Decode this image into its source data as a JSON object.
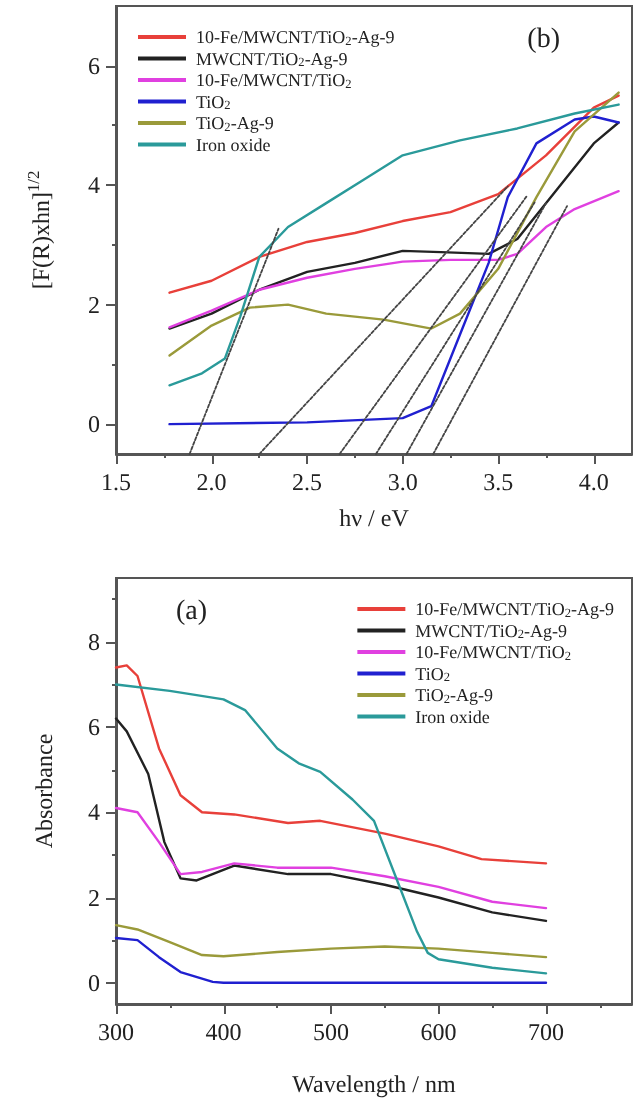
{
  "chart_data": [
    {
      "type": "line",
      "xlabel": "hν / eV",
      "ylabel": "[F(R)xhn]$^{1/2}$",
      "annotations": [
        "(b)"
      ],
      "xlim": [
        1.5,
        4.2
      ],
      "xticks": [
        1.5,
        {
          "value": 2,
          "label": "2.0"
        },
        2.5,
        {
          "value": 3,
          "label": "3.0"
        },
        3.5,
        {
          "value": 4,
          "label": "4.0"
        }
      ],
      "ylim": [
        -0.5,
        7
      ],
      "yticks": [
        0,
        2,
        4,
        6
      ],
      "grid": false,
      "legend": "top left",
      "marker": "none",
      "line_style": "solid",
      "series": [
        {
          "name": "10-Fe/MWCNT/TiO$_{2}$-Ag-9",
          "color": "#e8403a",
          "x": [
            1.78,
            2.0,
            2.25,
            2.5,
            2.75,
            3.0,
            3.25,
            3.5,
            3.75,
            4.0,
            4.13
          ],
          "values": [
            2.2,
            2.4,
            2.8,
            3.05,
            3.2,
            3.4,
            3.55,
            3.85,
            4.5,
            5.3,
            5.5
          ]
        },
        {
          "name": "MWCNT/TiO$_{2}$-Ag-9",
          "color": "#222222",
          "x": [
            1.78,
            2.0,
            2.25,
            2.5,
            2.75,
            3.0,
            3.2,
            3.45,
            3.6,
            3.8,
            4.0,
            4.13
          ],
          "values": [
            1.6,
            1.85,
            2.25,
            2.55,
            2.7,
            2.9,
            2.88,
            2.85,
            3.1,
            3.9,
            4.7,
            5.05
          ]
        },
        {
          "name": "10-Fe/MWCNT/TiO$_{2}$",
          "color": "#e040e0",
          "x": [
            1.78,
            2.0,
            2.25,
            2.5,
            2.75,
            3.0,
            3.25,
            3.5,
            3.6,
            3.75,
            3.9,
            4.13
          ],
          "values": [
            1.62,
            1.9,
            2.25,
            2.45,
            2.6,
            2.72,
            2.75,
            2.75,
            2.85,
            3.3,
            3.6,
            3.9
          ]
        },
        {
          "name": "TiO$_{2}$",
          "color": "#2020d0",
          "x": [
            1.78,
            2.5,
            3.0,
            3.15,
            3.3,
            3.45,
            3.55,
            3.7,
            3.9,
            4.0,
            4.13
          ],
          "values": [
            0,
            0.03,
            0.1,
            0.3,
            1.5,
            2.7,
            3.8,
            4.7,
            5.1,
            5.15,
            5.05
          ]
        },
        {
          "name": "TiO$_{2}$-Ag-9",
          "color": "#9a9a3a",
          "x": [
            1.78,
            2.0,
            2.2,
            2.4,
            2.6,
            2.9,
            3.15,
            3.3,
            3.5,
            3.7,
            3.9,
            4.13
          ],
          "values": [
            1.15,
            1.65,
            1.95,
            2.0,
            1.85,
            1.75,
            1.6,
            1.85,
            2.6,
            3.8,
            4.9,
            5.55
          ]
        },
        {
          "name": "Iron oxide",
          "color": "#2a9a9a",
          "x": [
            1.78,
            1.95,
            2.07,
            2.15,
            2.25,
            2.4,
            2.6,
            2.8,
            3.0,
            3.3,
            3.6,
            3.9,
            4.13
          ],
          "values": [
            0.65,
            0.85,
            1.1,
            1.8,
            2.8,
            3.3,
            3.7,
            4.1,
            4.5,
            4.75,
            4.95,
            5.2,
            5.35
          ]
        },
        {
          "color": "#444444",
          "line_style": "dotted",
          "x": [
            1.885,
            2.35
          ],
          "values": [
            -0.5,
            3.27
          ]
        },
        {
          "color": "#444444",
          "line_style": "dotted",
          "x": [
            2.25,
            3.55
          ],
          "values": [
            -0.5,
            3.98
          ]
        },
        {
          "color": "#444444",
          "line_style": "dotted",
          "x": [
            2.67,
            3.65
          ],
          "values": [
            -0.5,
            3.82
          ]
        },
        {
          "color": "#444444",
          "line_style": "dotted",
          "x": [
            2.86,
            3.69
          ],
          "values": [
            -0.5,
            3.71
          ]
        },
        {
          "color": "#444444",
          "line_style": "dotted",
          "x": [
            3.02,
            3.75
          ],
          "values": [
            -0.5,
            3.7
          ]
        },
        {
          "color": "#444444",
          "line_style": "dotted",
          "x": [
            3.16,
            3.86
          ],
          "values": [
            -0.5,
            3.65
          ]
        }
      ]
    },
    {
      "type": "line",
      "xlabel": "Wavelength / nm",
      "ylabel": "Absorbance",
      "annotations": [
        "(a)"
      ],
      "xlim": [
        300,
        780
      ],
      "xticks": [
        300,
        400,
        500,
        600,
        700
      ],
      "ylim": [
        -0.5,
        9.5
      ],
      "yticks": [
        0,
        2,
        4,
        6,
        8
      ],
      "grid": false,
      "legend": "top right",
      "marker": "none",
      "line_style": "solid",
      "series": [
        {
          "name": "10-Fe/MWCNT/TiO$_{2}$-Ag-9",
          "color": "#e8403a",
          "x": [
            300,
            310,
            320,
            340,
            360,
            380,
            410,
            460,
            490,
            550,
            600,
            640,
            700
          ],
          "values": [
            7.4,
            7.45,
            7.2,
            5.5,
            4.4,
            4.0,
            3.95,
            3.75,
            3.8,
            3.5,
            3.2,
            2.9,
            2.8
          ]
        },
        {
          "name": "MWCNT/TiO$_{2}$-Ag-9",
          "color": "#222222",
          "x": [
            300,
            310,
            330,
            345,
            360,
            375,
            410,
            460,
            500,
            550,
            600,
            650,
            700
          ],
          "values": [
            6.2,
            5.9,
            4.9,
            3.3,
            2.45,
            2.4,
            2.75,
            2.55,
            2.55,
            2.3,
            2.0,
            1.65,
            1.45
          ]
        },
        {
          "name": "10-Fe/MWCNT/TiO$_{2}$",
          "color": "#e040e0",
          "x": [
            300,
            320,
            340,
            360,
            380,
            410,
            450,
            500,
            550,
            600,
            650,
            700
          ],
          "values": [
            4.1,
            4.0,
            3.3,
            2.55,
            2.6,
            2.8,
            2.7,
            2.7,
            2.5,
            2.25,
            1.9,
            1.75
          ]
        },
        {
          "name": "TiO$_{2}$",
          "color": "#2020d0",
          "x": [
            300,
            320,
            340,
            360,
            390,
            400,
            700
          ],
          "values": [
            1.05,
            1.0,
            0.6,
            0.25,
            0.02,
            0,
            0
          ]
        },
        {
          "name": "TiO$_{2}$-Ag-9",
          "color": "#9a9a3a",
          "x": [
            300,
            320,
            350,
            380,
            400,
            450,
            500,
            550,
            600,
            650,
            700
          ],
          "values": [
            1.35,
            1.25,
            0.95,
            0.65,
            0.62,
            0.72,
            0.8,
            0.85,
            0.8,
            0.7,
            0.6
          ]
        },
        {
          "name": "Iron oxide",
          "color": "#2a9a9a",
          "x": [
            300,
            350,
            400,
            420,
            450,
            470,
            490,
            520,
            540,
            560,
            580,
            590,
            600,
            650,
            700
          ],
          "values": [
            7.0,
            6.85,
            6.65,
            6.4,
            5.5,
            5.15,
            4.95,
            4.3,
            3.8,
            2.5,
            1.2,
            0.7,
            0.55,
            0.35,
            0.22
          ]
        }
      ]
    }
  ]
}
